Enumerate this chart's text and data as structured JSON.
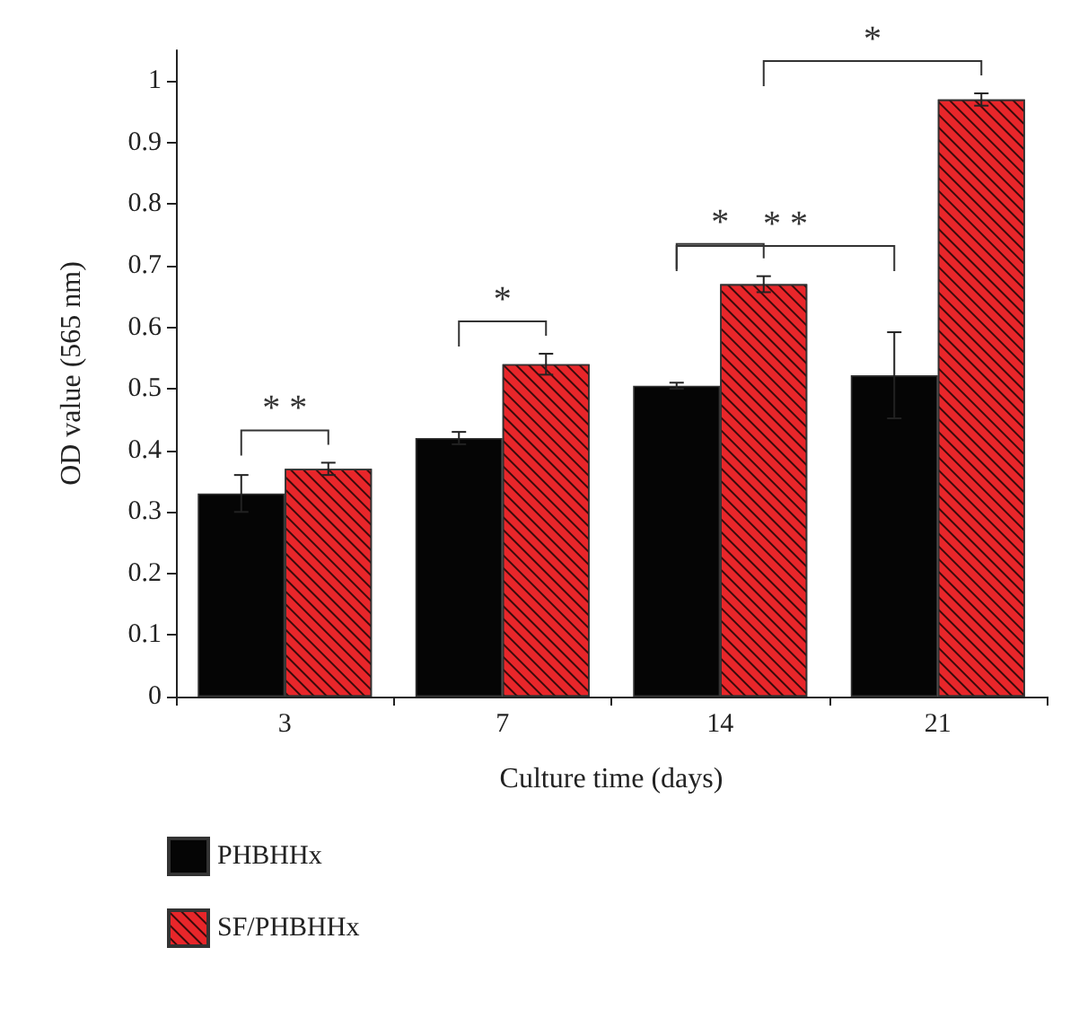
{
  "chart_data": {
    "type": "bar",
    "xlabel": "Culture time (days)",
    "ylabel": "OD value (565 nm)",
    "categories": [
      "3",
      "7",
      "14",
      "21"
    ],
    "series": [
      {
        "name": "PHBHHx",
        "color": "#050505",
        "values": [
          0.33,
          0.42,
          0.505,
          0.522
        ],
        "errors": [
          0.03,
          0.01,
          0.005,
          0.07
        ]
      },
      {
        "name": "SF/PHBHHx",
        "color": "#e8262a",
        "values": [
          0.37,
          0.54,
          0.67,
          0.97
        ],
        "errors": [
          0.01,
          0.017,
          0.013,
          0.01
        ]
      }
    ],
    "ylim": [
      0,
      1.05
    ],
    "yticks": [
      0,
      0.1,
      0.2,
      0.3,
      0.4,
      0.5,
      0.6,
      0.7,
      0.8,
      0.9,
      1
    ],
    "annotations": [
      "* *",
      "*",
      "*",
      "* *",
      "*"
    ],
    "legend": "bottom left",
    "grid": false
  }
}
